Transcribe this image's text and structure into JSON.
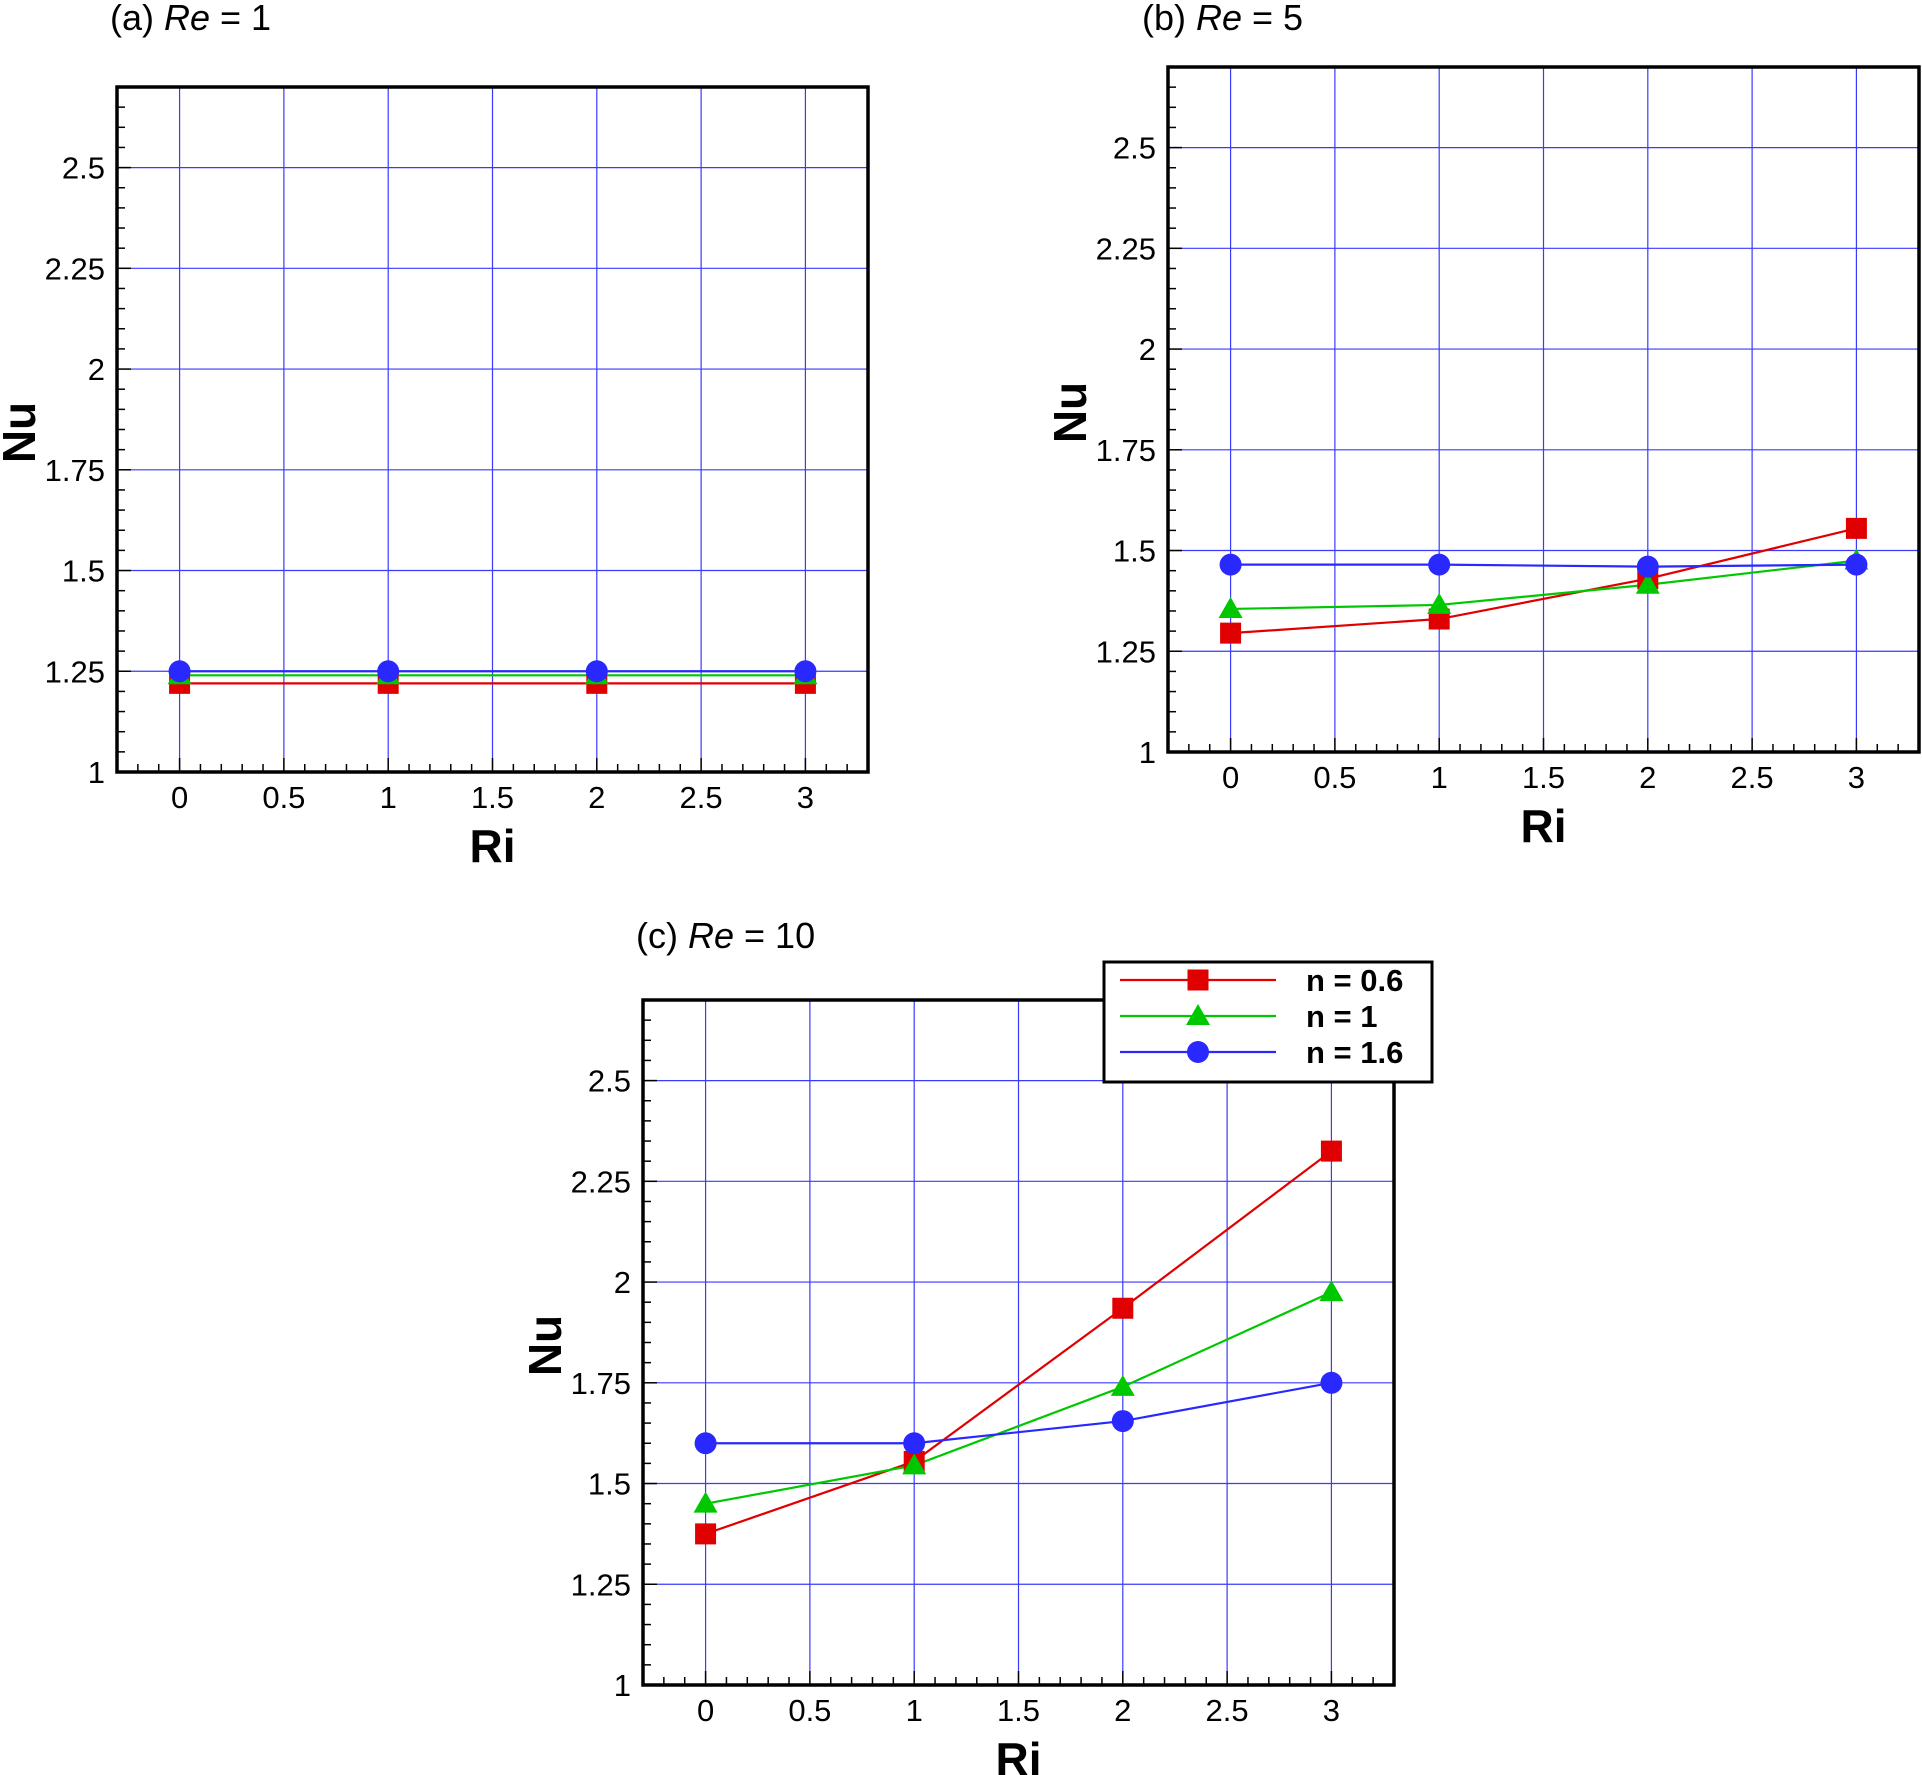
{
  "chart_data": [
    {
      "type": "line",
      "caption": {
        "prefix": "(a) ",
        "italic": "Re",
        "suffix": " = 1"
      },
      "xlabel": "Ri",
      "ylabel": "Nu",
      "xlim": [
        -0.3,
        3.3
      ],
      "ylim": [
        1,
        2.7
      ],
      "xticks": [
        0,
        0.5,
        1,
        1.5,
        2,
        2.5,
        3
      ],
      "xtick_labels": [
        "0",
        "0.5",
        "1",
        "1.5",
        "2",
        "2.5",
        "3"
      ],
      "yticks": [
        1,
        1.25,
        1.5,
        1.75,
        2,
        2.25,
        2.5
      ],
      "ytick_labels": [
        "1",
        "1.25",
        "1.5",
        "1.75",
        "2",
        "2.25",
        "2.5"
      ],
      "grid": true,
      "x": [
        0,
        1,
        2,
        3
      ],
      "series": [
        {
          "name": "n = 0.6",
          "values": [
            1.22,
            1.22,
            1.22,
            1.22
          ],
          "color": "#e00000",
          "marker": "square"
        },
        {
          "name": "n = 1",
          "values": [
            1.24,
            1.24,
            1.24,
            1.24
          ],
          "color": "#00c800",
          "marker": "triangle"
        },
        {
          "name": "n = 1.6",
          "values": [
            1.25,
            1.25,
            1.25,
            1.25
          ],
          "color": "#2828ff",
          "marker": "circle"
        }
      ]
    },
    {
      "type": "line",
      "caption": {
        "prefix": "(b) ",
        "italic": "Re",
        "suffix": " = 5"
      },
      "xlabel": "Ri",
      "ylabel": "Nu",
      "xlim": [
        -0.3,
        3.3
      ],
      "ylim": [
        1,
        2.7
      ],
      "xticks": [
        0,
        0.5,
        1,
        1.5,
        2,
        2.5,
        3
      ],
      "xtick_labels": [
        "0",
        "0.5",
        "1",
        "1.5",
        "2",
        "2.5",
        "3"
      ],
      "yticks": [
        1,
        1.25,
        1.5,
        1.75,
        2,
        2.25,
        2.5
      ],
      "ytick_labels": [
        "1",
        "1.25",
        "1.5",
        "1.75",
        "2",
        "2.25",
        "2.5"
      ],
      "grid": true,
      "x": [
        0,
        1,
        2,
        3
      ],
      "series": [
        {
          "name": "n = 0.6",
          "values": [
            1.295,
            1.33,
            1.43,
            1.555
          ],
          "color": "#e00000",
          "marker": "square"
        },
        {
          "name": "n = 1",
          "values": [
            1.355,
            1.365,
            1.415,
            1.475
          ],
          "color": "#00c800",
          "marker": "triangle"
        },
        {
          "name": "n = 1.6",
          "values": [
            1.465,
            1.465,
            1.46,
            1.465
          ],
          "color": "#2828ff",
          "marker": "circle"
        }
      ]
    },
    {
      "type": "line",
      "caption": {
        "prefix": "(c) ",
        "italic": "Re",
        "suffix": " = 10"
      },
      "xlabel": "Ri",
      "ylabel": "Nu",
      "xlim": [
        -0.3,
        3.3
      ],
      "ylim": [
        1,
        2.7
      ],
      "xticks": [
        0,
        0.5,
        1,
        1.5,
        2,
        2.5,
        3
      ],
      "xtick_labels": [
        "0",
        "0.5",
        "1",
        "1.5",
        "2",
        "2.5",
        "3"
      ],
      "yticks": [
        1,
        1.25,
        1.5,
        1.75,
        2,
        2.25,
        2.5
      ],
      "ytick_labels": [
        "1",
        "1.25",
        "1.5",
        "1.75",
        "2",
        "2.25",
        "2.5"
      ],
      "grid": true,
      "legend": "top-right",
      "x": [
        0,
        1,
        2,
        3
      ],
      "series": [
        {
          "name": "n = 0.6",
          "values": [
            1.375,
            1.555,
            1.935,
            2.325
          ],
          "color": "#e00000",
          "marker": "square"
        },
        {
          "name": "n = 1",
          "values": [
            1.45,
            1.545,
            1.74,
            1.975
          ],
          "color": "#00c800",
          "marker": "triangle"
        },
        {
          "name": "n = 1.6",
          "values": [
            1.6,
            1.6,
            1.655,
            1.75
          ],
          "color": "#2828ff",
          "marker": "circle"
        }
      ]
    }
  ]
}
